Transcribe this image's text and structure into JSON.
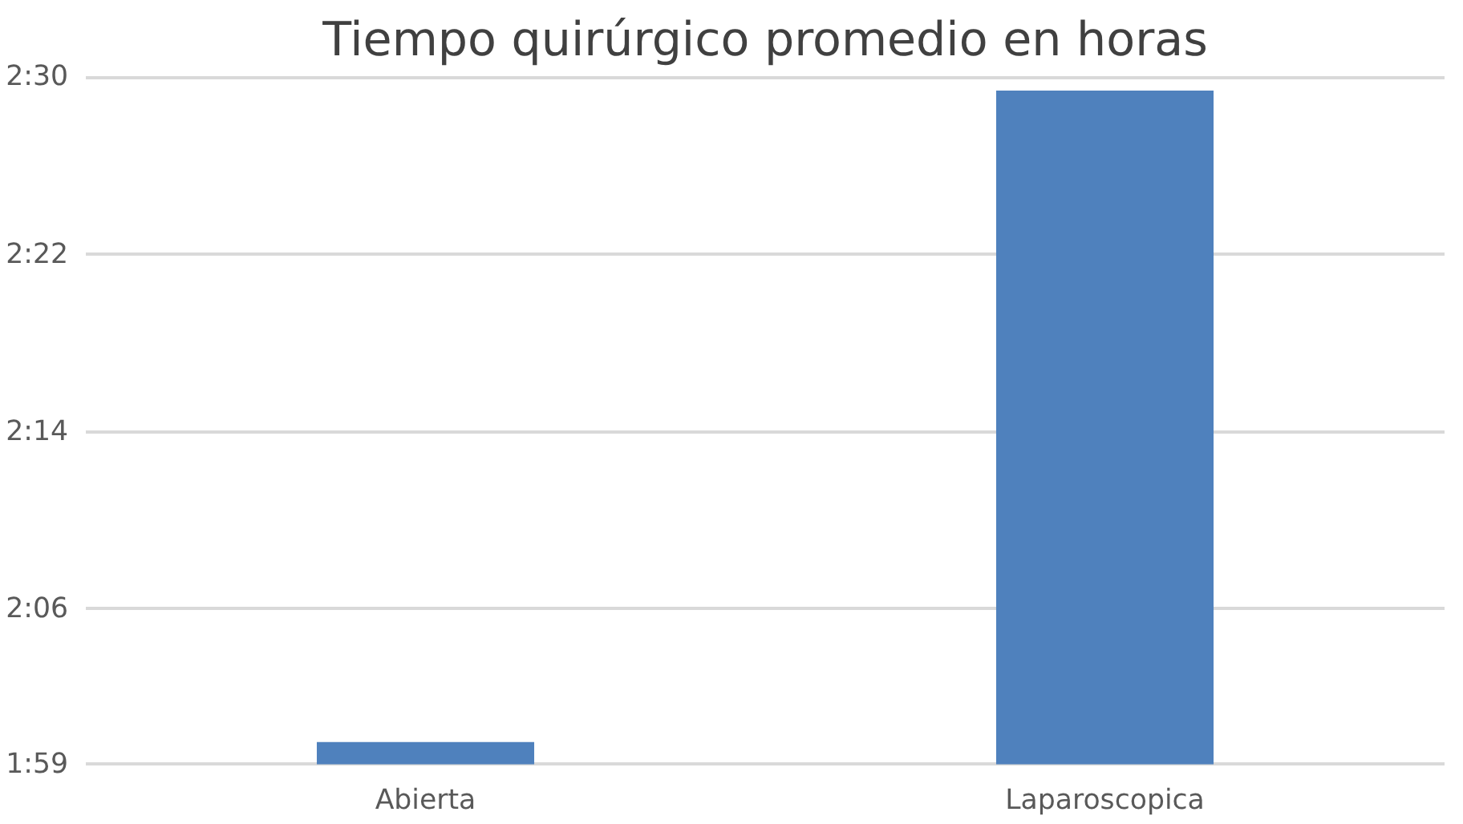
{
  "chart_data": {
    "type": "bar",
    "title": "Tiempo quirúrgico promedio en horas",
    "categories": [
      "Abierta",
      "Laparoscopica"
    ],
    "values": [
      2.0,
      2.49
    ],
    "color": "#4f81bd",
    "ylim": [
      1.9833,
      2.5
    ],
    "yticks": [
      {
        "value": 1.9833,
        "label": "1:59"
      },
      {
        "value": 2.1,
        "label": "2:06"
      },
      {
        "value": 2.2333,
        "label": "2:14"
      },
      {
        "value": 2.3667,
        "label": "2:22"
      },
      {
        "value": 2.5,
        "label": "2:30"
      }
    ],
    "grid": "y"
  }
}
